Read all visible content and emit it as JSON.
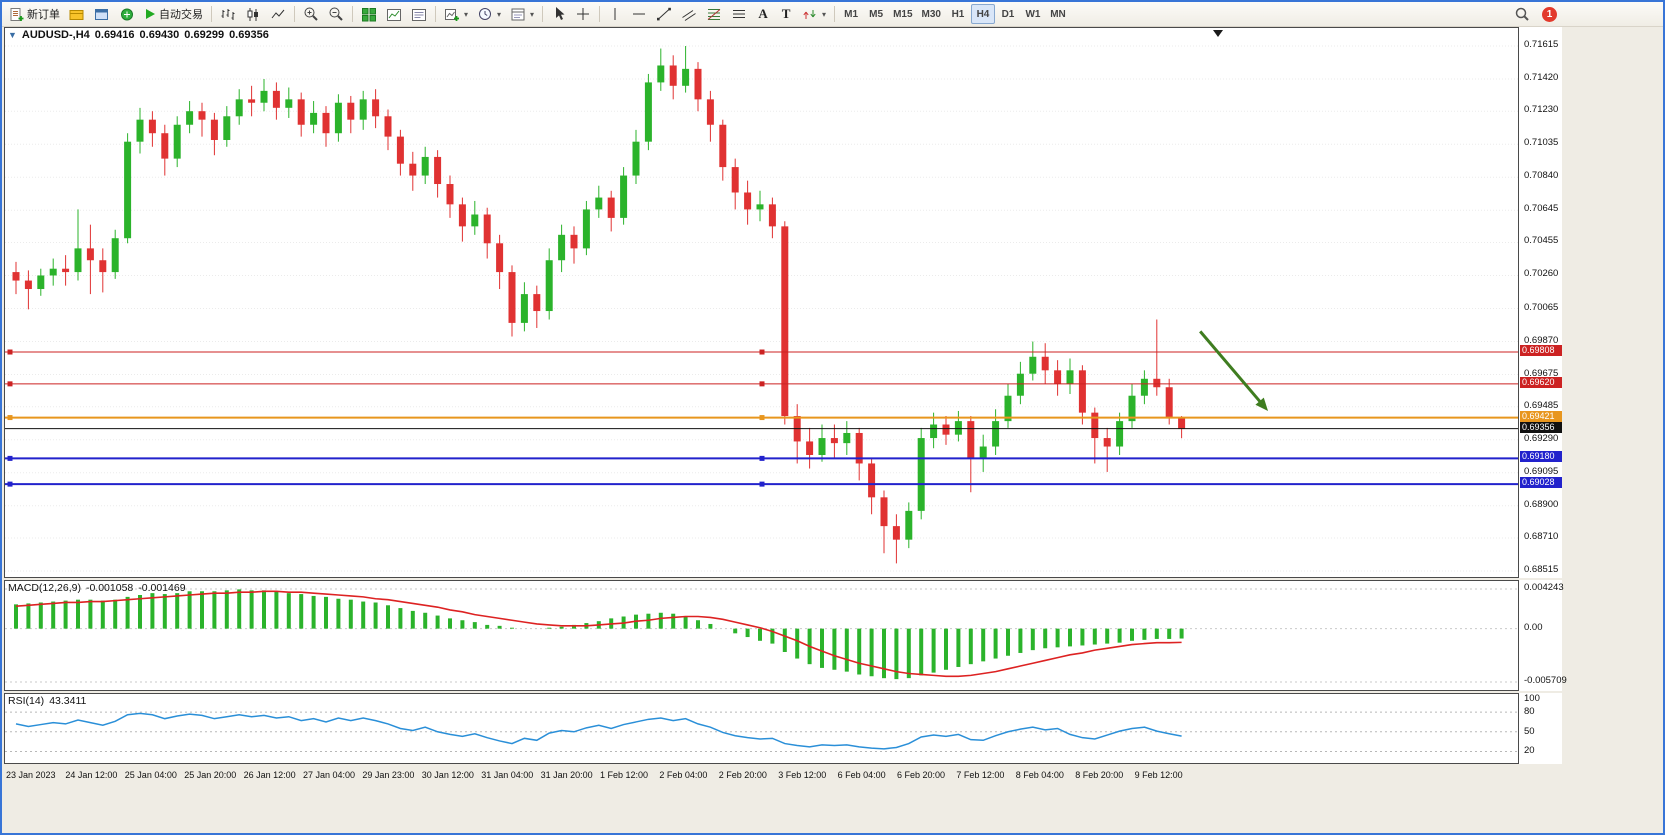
{
  "toolbar": {
    "new_order_label": "新订单",
    "auto_trading_label": "自动交易",
    "text_tool_label": "A",
    "label_tool_label": "T",
    "timeframes": [
      "M1",
      "M5",
      "M15",
      "M30",
      "H1",
      "H4",
      "D1",
      "W1",
      "MN"
    ],
    "active_timeframe": "H4",
    "notification_count": "1"
  },
  "chart": {
    "symbol_period": "AUDUSD-,H4",
    "open": "0.69416",
    "high": "0.69430",
    "low": "0.69299",
    "close": "0.69356"
  },
  "chart_data": {
    "type": "candlestick",
    "symbol": "AUDUSD-",
    "period": "H4",
    "colors": {
      "up": "#2bb32b",
      "down": "#e03232"
    },
    "price_axis": {
      "max": 0.71615,
      "min": 0.68515,
      "labels": [
        "0.71615",
        "0.71420",
        "0.71230",
        "0.71035",
        "0.70840",
        "0.70645",
        "0.70455",
        "0.70260",
        "0.70065",
        "0.69870",
        "0.69675",
        "0.69485",
        "0.69290",
        "0.69095",
        "0.68900",
        "0.68710",
        "0.68515"
      ]
    },
    "time_labels": [
      "23 Jan 2023",
      "24 Jan 12:00",
      "25 Jan 04:00",
      "25 Jan 20:00",
      "26 Jan 12:00",
      "27 Jan 04:00",
      "29 Jan 23:00",
      "30 Jan 12:00",
      "31 Jan 04:00",
      "31 Jan 20:00",
      "1 Feb 12:00",
      "2 Feb 04:00",
      "2 Feb 20:00",
      "3 Feb 12:00",
      "6 Feb 04:00",
      "6 Feb 20:00",
      "7 Feb 12:00",
      "8 Feb 04:00",
      "8 Feb 20:00",
      "9 Feb 12:00"
    ],
    "candles": [
      [
        0.7028,
        0.7034,
        0.7015,
        0.7023
      ],
      [
        0.7023,
        0.7029,
        0.7006,
        0.7018
      ],
      [
        0.7018,
        0.703,
        0.7014,
        0.7026
      ],
      [
        0.7026,
        0.7036,
        0.702,
        0.703
      ],
      [
        0.703,
        0.7038,
        0.702,
        0.7028
      ],
      [
        0.7028,
        0.7065,
        0.7023,
        0.7042
      ],
      [
        0.7042,
        0.7056,
        0.7015,
        0.7035
      ],
      [
        0.7035,
        0.7042,
        0.7016,
        0.7028
      ],
      [
        0.7028,
        0.7053,
        0.7024,
        0.7048
      ],
      [
        0.7048,
        0.711,
        0.7045,
        0.7105
      ],
      [
        0.7105,
        0.7125,
        0.7098,
        0.7118
      ],
      [
        0.7118,
        0.7123,
        0.7102,
        0.711
      ],
      [
        0.711,
        0.7115,
        0.7085,
        0.7095
      ],
      [
        0.7095,
        0.712,
        0.709,
        0.7115
      ],
      [
        0.7115,
        0.7129,
        0.711,
        0.7123
      ],
      [
        0.7123,
        0.7128,
        0.7108,
        0.7118
      ],
      [
        0.7118,
        0.7122,
        0.7097,
        0.7106
      ],
      [
        0.7106,
        0.7126,
        0.7102,
        0.712
      ],
      [
        0.712,
        0.7136,
        0.7115,
        0.713
      ],
      [
        0.713,
        0.7138,
        0.712,
        0.7128
      ],
      [
        0.7128,
        0.7142,
        0.7123,
        0.7135
      ],
      [
        0.7135,
        0.714,
        0.7118,
        0.7125
      ],
      [
        0.7125,
        0.7137,
        0.7119,
        0.713
      ],
      [
        0.713,
        0.7134,
        0.7108,
        0.7115
      ],
      [
        0.7115,
        0.7129,
        0.711,
        0.7122
      ],
      [
        0.7122,
        0.7126,
        0.7102,
        0.711
      ],
      [
        0.711,
        0.7133,
        0.7105,
        0.7128
      ],
      [
        0.7128,
        0.7132,
        0.711,
        0.7118
      ],
      [
        0.7118,
        0.7135,
        0.7112,
        0.713
      ],
      [
        0.713,
        0.7136,
        0.7113,
        0.712
      ],
      [
        0.712,
        0.7124,
        0.71,
        0.7108
      ],
      [
        0.7108,
        0.7112,
        0.7085,
        0.7092
      ],
      [
        0.7092,
        0.7099,
        0.7076,
        0.7085
      ],
      [
        0.7085,
        0.7102,
        0.708,
        0.7096
      ],
      [
        0.7096,
        0.71,
        0.7072,
        0.708
      ],
      [
        0.708,
        0.7085,
        0.706,
        0.7068
      ],
      [
        0.7068,
        0.7072,
        0.7046,
        0.7055
      ],
      [
        0.7055,
        0.707,
        0.705,
        0.7062
      ],
      [
        0.7062,
        0.7066,
        0.7036,
        0.7045
      ],
      [
        0.7045,
        0.705,
        0.7018,
        0.7028
      ],
      [
        0.7028,
        0.7032,
        0.699,
        0.6998
      ],
      [
        0.6998,
        0.7022,
        0.6993,
        0.7015
      ],
      [
        0.7015,
        0.702,
        0.6995,
        0.7005
      ],
      [
        0.7005,
        0.7042,
        0.7,
        0.7035
      ],
      [
        0.7035,
        0.7056,
        0.7028,
        0.705
      ],
      [
        0.705,
        0.7055,
        0.7033,
        0.7042
      ],
      [
        0.7042,
        0.707,
        0.7038,
        0.7065
      ],
      [
        0.7065,
        0.7079,
        0.706,
        0.7072
      ],
      [
        0.7072,
        0.7076,
        0.7052,
        0.706
      ],
      [
        0.706,
        0.709,
        0.7056,
        0.7085
      ],
      [
        0.7085,
        0.7112,
        0.708,
        0.7105
      ],
      [
        0.7105,
        0.7145,
        0.71,
        0.714
      ],
      [
        0.714,
        0.716,
        0.7135,
        0.715
      ],
      [
        0.715,
        0.7156,
        0.713,
        0.7138
      ],
      [
        0.7138,
        0.71615,
        0.7134,
        0.7148
      ],
      [
        0.7148,
        0.7152,
        0.7123,
        0.713
      ],
      [
        0.713,
        0.7135,
        0.7105,
        0.7115
      ],
      [
        0.7115,
        0.7118,
        0.7082,
        0.709
      ],
      [
        0.709,
        0.7095,
        0.7065,
        0.7075
      ],
      [
        0.7075,
        0.7082,
        0.7056,
        0.7065
      ],
      [
        0.7065,
        0.7076,
        0.7058,
        0.7068
      ],
      [
        0.7068,
        0.7072,
        0.7048,
        0.7055
      ],
      [
        0.7055,
        0.7058,
        0.6938,
        0.6943
      ],
      [
        0.6943,
        0.695,
        0.6915,
        0.6928
      ],
      [
        0.6928,
        0.6936,
        0.6912,
        0.692
      ],
      [
        0.692,
        0.6938,
        0.6916,
        0.693
      ],
      [
        0.693,
        0.6938,
        0.6918,
        0.6927
      ],
      [
        0.6927,
        0.694,
        0.692,
        0.6933
      ],
      [
        0.6933,
        0.6936,
        0.6905,
        0.6915
      ],
      [
        0.6915,
        0.6918,
        0.6885,
        0.6895
      ],
      [
        0.6895,
        0.6899,
        0.6862,
        0.6878
      ],
      [
        0.6878,
        0.6885,
        0.6856,
        0.687
      ],
      [
        0.687,
        0.6892,
        0.6865,
        0.6887
      ],
      [
        0.6887,
        0.6936,
        0.6882,
        0.693
      ],
      [
        0.693,
        0.6945,
        0.6924,
        0.6938
      ],
      [
        0.6938,
        0.6943,
        0.6926,
        0.6932
      ],
      [
        0.6932,
        0.6946,
        0.6928,
        0.694
      ],
      [
        0.694,
        0.6943,
        0.6898,
        0.6918
      ],
      [
        0.6918,
        0.6932,
        0.691,
        0.6925
      ],
      [
        0.6925,
        0.6947,
        0.692,
        0.694
      ],
      [
        0.694,
        0.6962,
        0.6936,
        0.6955
      ],
      [
        0.6955,
        0.6975,
        0.695,
        0.6968
      ],
      [
        0.6968,
        0.6987,
        0.6964,
        0.6978
      ],
      [
        0.6978,
        0.6986,
        0.6962,
        0.697
      ],
      [
        0.697,
        0.6976,
        0.6955,
        0.6962
      ],
      [
        0.6962,
        0.6977,
        0.6956,
        0.697
      ],
      [
        0.697,
        0.6973,
        0.6938,
        0.6945
      ],
      [
        0.6945,
        0.6948,
        0.6915,
        0.693
      ],
      [
        0.693,
        0.6936,
        0.691,
        0.6925
      ],
      [
        0.6925,
        0.6945,
        0.692,
        0.694
      ],
      [
        0.694,
        0.6962,
        0.6936,
        0.6955
      ],
      [
        0.6955,
        0.697,
        0.695,
        0.6965
      ],
      [
        0.6965,
        0.7,
        0.6955,
        0.696
      ],
      [
        0.696,
        0.6965,
        0.6938,
        0.69416
      ],
      [
        0.69416,
        0.6943,
        0.69299,
        0.69356
      ]
    ],
    "hlines": [
      {
        "price": 0.69808,
        "label": "0.69808",
        "color": "#cc2222",
        "width": 1,
        "handles": true
      },
      {
        "price": 0.6962,
        "label": "0.69620",
        "color": "#cc2222",
        "width": 1,
        "handles": true
      },
      {
        "price": 0.69421,
        "label": "0.69421",
        "color": "#e8961e",
        "width": 2,
        "handles": true
      },
      {
        "price": 0.69356,
        "label": "0.69356",
        "color": "#111111",
        "width": 1,
        "handles": false
      },
      {
        "price": 0.6918,
        "label": "0.69180",
        "color": "#2222cc",
        "width": 2,
        "handles": true
      },
      {
        "price": 0.69028,
        "label": "0.69028",
        "color": "#2222cc",
        "width": 2,
        "handles": true
      }
    ],
    "arrow": {
      "from_bar": 95.5,
      "from_price": 0.6993,
      "to_bar": 100.5,
      "to_price": 0.695,
      "color": "#3f7d20"
    },
    "macd": {
      "label": "MACD(12,26,9)",
      "main_value": "-0.001058",
      "signal_value": "-0.001469",
      "max": 0.004243,
      "min": -0.005709,
      "hist_color": "#2bb32b",
      "signal_color": "#dd2222",
      "axis_labels": [
        {
          "text": "0.004243",
          "value": 0.004243
        },
        {
          "text": "0.00",
          "value": 0
        },
        {
          "text": "-0.005709",
          "value": -0.005709
        }
      ],
      "histogram": [
        0.0026,
        0.0027,
        0.0028,
        0.0029,
        0.003,
        0.0031,
        0.0031,
        0.003,
        0.0031,
        0.0034,
        0.0036,
        0.0038,
        0.0037,
        0.0038,
        0.004,
        0.004,
        0.004,
        0.0041,
        0.0042,
        0.0041,
        0.0041,
        0.004,
        0.0038,
        0.0037,
        0.0035,
        0.0034,
        0.0032,
        0.0031,
        0.0029,
        0.0028,
        0.0025,
        0.0022,
        0.0019,
        0.0017,
        0.0014,
        0.0011,
        0.0009,
        0.0007,
        0.0004,
        0.0003,
        0.0001,
        0.0,
        0.0,
        0.0001,
        0.0002,
        0.0004,
        0.0006,
        0.0008,
        0.0011,
        0.0013,
        0.0015,
        0.0016,
        0.0017,
        0.0016,
        0.0013,
        0.0009,
        0.0005,
        0.0,
        -0.0005,
        -0.0009,
        -0.0013,
        -0.0016,
        -0.0025,
        -0.0032,
        -0.0038,
        -0.0042,
        -0.0044,
        -0.0046,
        -0.0049,
        -0.0051,
        -0.0053,
        -0.0054,
        -0.0053,
        -0.005,
        -0.0047,
        -0.0044,
        -0.0041,
        -0.0038,
        -0.0035,
        -0.0032,
        -0.0029,
        -0.0026,
        -0.0023,
        -0.0021,
        -0.002,
        -0.0019,
        -0.0018,
        -0.0017,
        -0.0016,
        -0.0015,
        -0.0013,
        -0.0012,
        -0.0011,
        -0.0011,
        -0.001058
      ],
      "signal": [
        0.0024,
        0.0025,
        0.0026,
        0.0027,
        0.0028,
        0.0028,
        0.0029,
        0.0029,
        0.003,
        0.0031,
        0.0032,
        0.0033,
        0.0034,
        0.0035,
        0.0036,
        0.0037,
        0.0038,
        0.0038,
        0.0039,
        0.0039,
        0.004,
        0.004,
        0.0039,
        0.0039,
        0.0038,
        0.0037,
        0.0036,
        0.0035,
        0.0034,
        0.0032,
        0.0031,
        0.0029,
        0.0027,
        0.0025,
        0.0023,
        0.002,
        0.0018,
        0.0015,
        0.0013,
        0.0011,
        0.0009,
        0.0007,
        0.0005,
        0.0004,
        0.0003,
        0.0003,
        0.0003,
        0.0004,
        0.0005,
        0.0006,
        0.0008,
        0.0009,
        0.0011,
        0.0012,
        0.0013,
        0.0013,
        0.0012,
        0.001,
        0.0007,
        0.0004,
        0.0001,
        -0.0003,
        -0.0008,
        -0.0013,
        -0.0019,
        -0.0024,
        -0.0029,
        -0.0033,
        -0.0037,
        -0.004,
        -0.0043,
        -0.0046,
        -0.0048,
        -0.0049,
        -0.005,
        -0.0051,
        -0.0051,
        -0.005,
        -0.0048,
        -0.0046,
        -0.0043,
        -0.004,
        -0.0037,
        -0.0034,
        -0.0031,
        -0.0028,
        -0.0026,
        -0.0023,
        -0.0021,
        -0.0019,
        -0.0017,
        -0.0016,
        -0.0015,
        -0.0015,
        -0.001469
      ]
    },
    "rsi": {
      "label": "RSI(14)",
      "value": "43.3411",
      "max": 100,
      "min": 10,
      "levels": [
        80,
        50,
        20
      ],
      "line_color": "#2a8fd8",
      "axis_labels": [
        {
          "text": "100",
          "value": 100
        },
        {
          "text": "80",
          "value": 80
        },
        {
          "text": "50",
          "value": 50
        },
        {
          "text": "20",
          "value": 20
        }
      ],
      "values": [
        62,
        58,
        61,
        64,
        62,
        68,
        64,
        60,
        66,
        76,
        78,
        76,
        70,
        74,
        77,
        75,
        70,
        73,
        76,
        73,
        75,
        71,
        73,
        67,
        70,
        65,
        71,
        67,
        71,
        67,
        62,
        55,
        52,
        57,
        50,
        46,
        43,
        47,
        41,
        36,
        32,
        40,
        37,
        48,
        52,
        50,
        56,
        60,
        55,
        61,
        65,
        69,
        71,
        67,
        70,
        62,
        57,
        49,
        44,
        41,
        39,
        40,
        32,
        29,
        27,
        30,
        29,
        30,
        27,
        25,
        24,
        26,
        32,
        42,
        45,
        43,
        46,
        38,
        37,
        44,
        50,
        54,
        57,
        53,
        55,
        46,
        41,
        39,
        45,
        51,
        55,
        57,
        51,
        47,
        43.3411
      ]
    }
  }
}
